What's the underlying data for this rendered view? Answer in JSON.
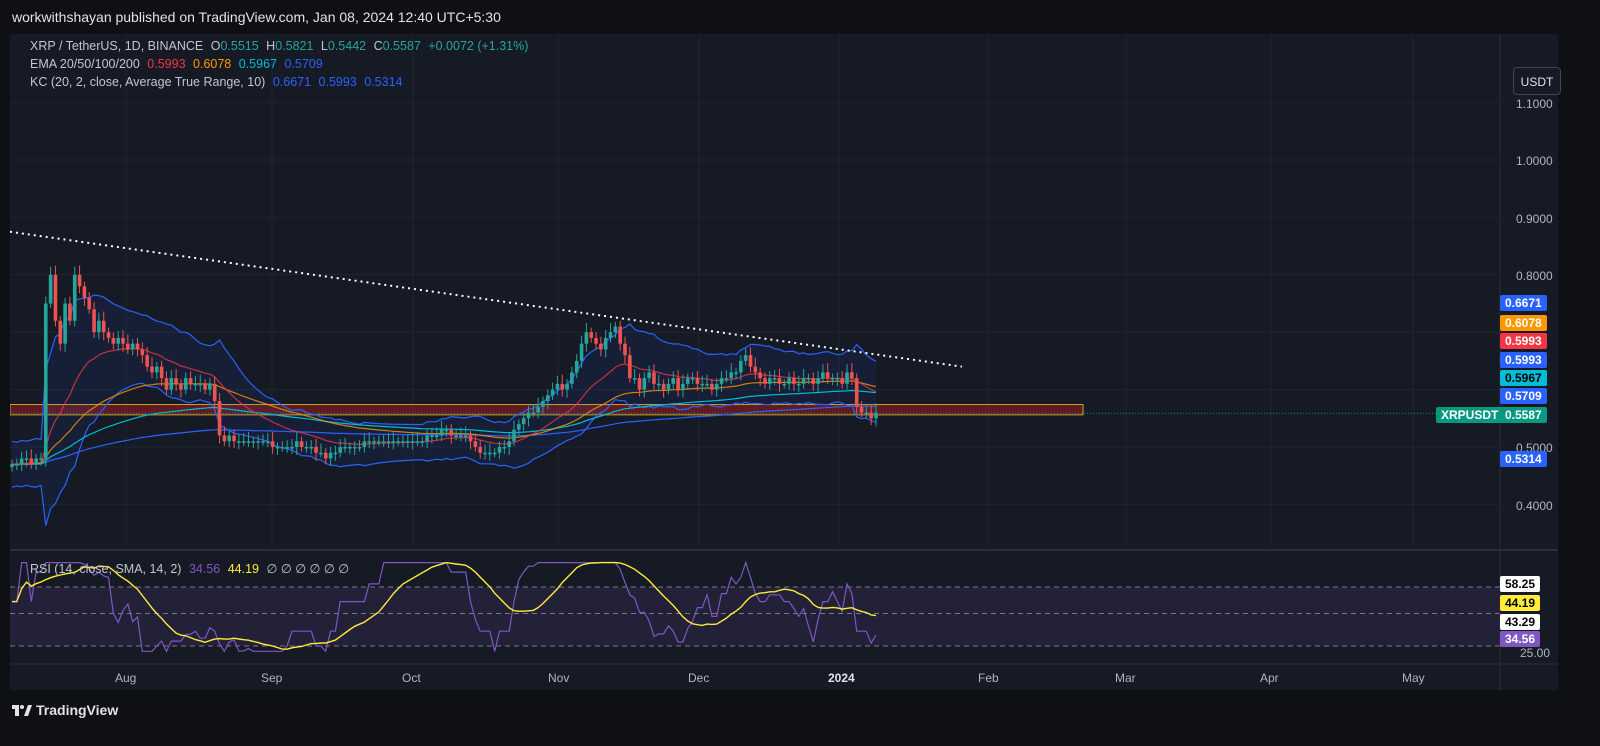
{
  "header": {
    "published": "workwithshayan published on TradingView.com, Jan 08, 2024 12:40 UTC+5:30"
  },
  "footer": {
    "brand": "TradingView"
  },
  "currency_button": "USDT",
  "legend": {
    "symbol": "XRP / TetherUS, 1D, BINANCE",
    "o_label": "O",
    "o": "0.5515",
    "h_label": "H",
    "h": "0.5821",
    "l_label": "L",
    "l": "0.5442",
    "c_label": "C",
    "c": "0.5587",
    "change": "+0.0072 (+1.31%)",
    "ema_label": "EMA 20/50/100/200",
    "ema20": "0.5993",
    "ema50": "0.6078",
    "ema100": "0.5967",
    "ema200": "0.5709",
    "kc_label": "KC (20, 2, close, Average True Range, 10)",
    "kc_upper": "0.6671",
    "kc_mid": "0.5993",
    "kc_lower": "0.5314",
    "rsi_label": "RSI (14, close, SMA, 14, 2)",
    "rsi": "34.56",
    "rsi_ma": "44.19",
    "rsi_extra": "∅ ∅ ∅ ∅ ∅ ∅"
  },
  "colors": {
    "up": "#26a69a",
    "down": "#ef5350",
    "ema20": "#f23645",
    "ema50": "#ff9800",
    "ema100": "#00bcd4",
    "ema200": "#2962ff",
    "kc": "#2962ff",
    "rsi": "#7e57c2",
    "rsi_ma": "#ffeb3b",
    "tag_last": "#089981"
  },
  "price_tags": [
    {
      "value": "0.6671",
      "color": "#2962ff",
      "text_color": "#ffffff"
    },
    {
      "value": "0.6078",
      "color": "#ff9800",
      "text_color": "#ffffff"
    },
    {
      "value": "0.5993",
      "color": "#f23645",
      "text_color": "#ffffff"
    },
    {
      "value": "0.5993",
      "color": "#2962ff",
      "text_color": "#ffffff"
    },
    {
      "value": "0.5967",
      "color": "#00bcd4",
      "text_color": "#000000"
    },
    {
      "value": "0.5709",
      "color": "#2962ff",
      "text_color": "#ffffff"
    },
    {
      "value": "0.5314",
      "color": "#2962ff",
      "text_color": "#ffffff"
    }
  ],
  "last_price": {
    "symbol": "XRPUSDT",
    "value": "0.5587"
  },
  "rsi_tags": [
    {
      "value": "58.25",
      "color": "#ffffff",
      "text_color": "#000000"
    },
    {
      "value": "44.19",
      "color": "#ffeb3b",
      "text_color": "#000000"
    },
    {
      "value": "43.29",
      "color": "#ffffff",
      "text_color": "#000000"
    },
    {
      "value": "34.56",
      "color": "#7e57c2",
      "text_color": "#ffffff"
    }
  ],
  "chart_data": {
    "type": "candlestick",
    "x_ticks": [
      "Aug",
      "Sep",
      "Oct",
      "Nov",
      "Dec",
      "2024",
      "Feb",
      "Mar",
      "Apr",
      "May"
    ],
    "y_ticks": [
      "1.1000",
      "1.0000",
      "0.9000",
      "0.8000",
      "0.5000",
      "0.4000"
    ],
    "rsi_ticks": [
      "25.00"
    ],
    "ylim": [
      0.33,
      1.2
    ],
    "rsi_ylim": [
      20,
      70
    ],
    "support_zone": [
      0.556,
      0.574
    ],
    "trendline": {
      "from": [
        "2023-07-01",
        0.875
      ],
      "to": [
        "2024-01-29",
        0.64
      ]
    },
    "closes": [
      0.47,
      0.47,
      0.48,
      0.48,
      0.47,
      0.48,
      0.48,
      0.75,
      0.8,
      0.72,
      0.68,
      0.75,
      0.72,
      0.8,
      0.78,
      0.76,
      0.74,
      0.7,
      0.72,
      0.7,
      0.69,
      0.68,
      0.69,
      0.68,
      0.67,
      0.68,
      0.67,
      0.66,
      0.64,
      0.63,
      0.64,
      0.62,
      0.6,
      0.62,
      0.61,
      0.6,
      0.62,
      0.61,
      0.61,
      0.61,
      0.6,
      0.61,
      0.58,
      0.52,
      0.51,
      0.52,
      0.51,
      0.51,
      0.51,
      0.51,
      0.51,
      0.51,
      0.51,
      0.51,
      0.5,
      0.5,
      0.5,
      0.5,
      0.5,
      0.51,
      0.5,
      0.5,
      0.5,
      0.49,
      0.49,
      0.48,
      0.49,
      0.49,
      0.5,
      0.5,
      0.5,
      0.5,
      0.5,
      0.51,
      0.51,
      0.51,
      0.51,
      0.51,
      0.51,
      0.51,
      0.51,
      0.51,
      0.51,
      0.51,
      0.51,
      0.51,
      0.52,
      0.52,
      0.52,
      0.53,
      0.53,
      0.52,
      0.52,
      0.52,
      0.52,
      0.51,
      0.5,
      0.49,
      0.49,
      0.49,
      0.49,
      0.5,
      0.5,
      0.51,
      0.53,
      0.54,
      0.55,
      0.56,
      0.56,
      0.57,
      0.58,
      0.59,
      0.6,
      0.61,
      0.6,
      0.61,
      0.63,
      0.65,
      0.68,
      0.7,
      0.69,
      0.68,
      0.67,
      0.69,
      0.7,
      0.71,
      0.68,
      0.66,
      0.62,
      0.62,
      0.6,
      0.62,
      0.63,
      0.61,
      0.61,
      0.6,
      0.61,
      0.62,
      0.6,
      0.61,
      0.62,
      0.62,
      0.61,
      0.61,
      0.61,
      0.6,
      0.61,
      0.62,
      0.62,
      0.63,
      0.63,
      0.65,
      0.66,
      0.64,
      0.63,
      0.62,
      0.61,
      0.62,
      0.62,
      0.61,
      0.61,
      0.62,
      0.61,
      0.61,
      0.62,
      0.62,
      0.61,
      0.62,
      0.63,
      0.62,
      0.62,
      0.62,
      0.61,
      0.63,
      0.62,
      0.57,
      0.56,
      0.56,
      0.55,
      0.56
    ]
  }
}
